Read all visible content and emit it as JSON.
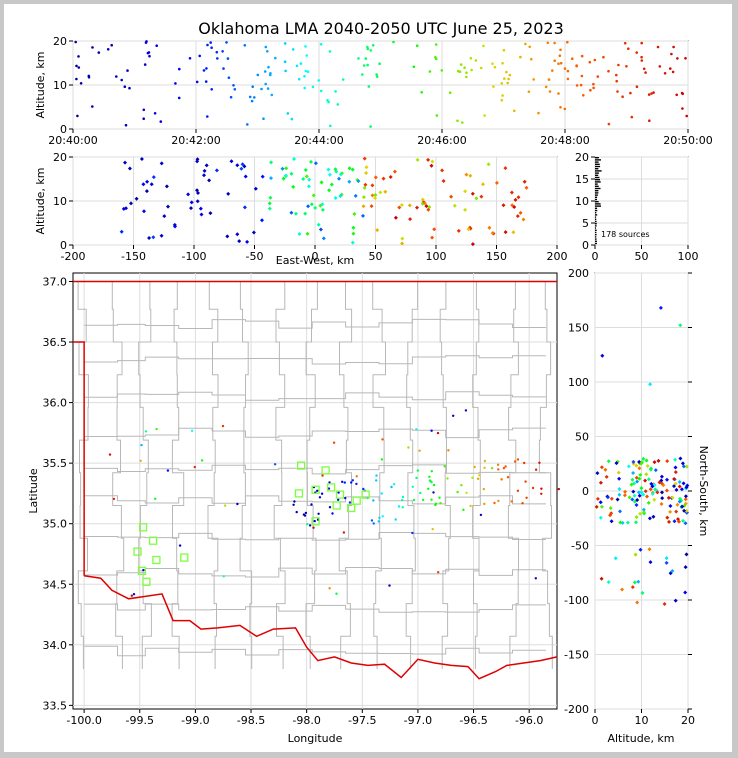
{
  "title": "Oklahoma LMA 2040-2050 UTC June 25, 2023",
  "chart_data": [
    {
      "id": "time-height",
      "type": "scatter",
      "xlabel": "",
      "ylabel": "Altitude, km",
      "xlim": [
        "20:40:00",
        "20:50:00"
      ],
      "ylim": [
        0,
        20
      ],
      "x_tick_labels": [
        "20:40:00",
        "20:42:00",
        "20:44:00",
        "20:46:00",
        "20:48:00",
        "20:50:00"
      ],
      "y_tick_labels": [
        "0",
        "10",
        "20"
      ],
      "color_encoding": "time (blue early to red late)",
      "points_min_alt": [
        [
          0.0,
          12
        ],
        [
          0.1,
          10
        ],
        [
          0.3,
          16
        ],
        [
          0.5,
          18
        ],
        [
          0.8,
          6
        ],
        [
          0.9,
          3
        ],
        [
          1.2,
          19
        ],
        [
          1.6,
          11
        ],
        [
          2.0,
          15
        ],
        [
          2.3,
          8
        ],
        [
          2.6,
          17
        ],
        [
          3.0,
          7
        ],
        [
          3.3,
          17
        ],
        [
          3.6,
          19
        ],
        [
          4.0,
          15
        ],
        [
          4.2,
          13
        ],
        [
          4.3,
          3
        ],
        [
          4.6,
          12
        ],
        [
          4.9,
          16
        ],
        [
          5.2,
          19
        ],
        [
          5.6,
          1
        ],
        [
          5.9,
          18
        ],
        [
          6.3,
          14
        ],
        [
          6.6,
          17
        ],
        [
          7.0,
          18
        ],
        [
          7.3,
          4
        ],
        [
          7.6,
          7
        ],
        [
          7.9,
          19
        ],
        [
          8.1,
          12
        ],
        [
          8.3,
          16
        ],
        [
          8.8,
          11
        ],
        [
          9.0,
          20
        ],
        [
          9.1,
          5
        ],
        [
          9.6,
          17
        ],
        [
          10.0,
          18
        ],
        [
          10.4,
          9
        ],
        [
          11.0,
          4
        ],
        [
          11.6,
          12
        ],
        [
          12.0,
          16
        ],
        [
          12.5,
          5
        ],
        [
          13.0,
          20
        ],
        [
          13.4,
          10
        ],
        [
          14.0,
          18
        ],
        [
          14.5,
          1
        ],
        [
          15.0,
          15
        ],
        [
          15.5,
          7
        ],
        [
          16.0,
          20
        ],
        [
          16.4,
          12
        ],
        [
          16.9,
          2
        ],
        [
          17.3,
          16
        ],
        [
          18.0,
          19
        ],
        [
          18.5,
          1
        ],
        [
          19.0,
          14
        ],
        [
          19.5,
          16
        ],
        [
          20.0,
          6
        ],
        [
          20.4,
          17
        ],
        [
          21.0,
          18
        ],
        [
          21.5,
          7
        ],
        [
          22.1,
          12
        ],
        [
          22.6,
          16
        ],
        [
          23.0,
          4
        ],
        [
          23.3,
          13
        ],
        [
          23.8,
          20
        ],
        [
          24.2,
          8
        ],
        [
          24.9,
          16
        ],
        [
          25.4,
          11
        ],
        [
          26.0,
          19
        ],
        [
          26.5,
          18
        ],
        [
          27.0,
          19
        ],
        [
          27.4,
          14
        ],
        [
          27.9,
          17
        ],
        [
          28.2,
          11
        ],
        [
          28.6,
          9
        ],
        [
          29.0,
          12
        ],
        [
          29.3,
          16
        ],
        [
          29.6,
          19
        ],
        [
          30.0,
          5
        ],
        [
          30.5,
          15
        ],
        [
          31.0,
          20
        ],
        [
          31.5,
          12
        ],
        [
          32.0,
          16
        ],
        [
          32.6,
          9
        ],
        [
          33.0,
          3
        ],
        [
          33.5,
          17
        ],
        [
          34.0,
          12
        ],
        [
          34.5,
          19
        ],
        [
          35.0,
          14
        ],
        [
          35.3,
          8
        ],
        [
          36.0,
          10
        ],
        [
          36.5,
          20
        ],
        [
          37.0,
          16
        ],
        [
          37.5,
          11
        ],
        [
          38.0,
          19
        ],
        [
          38.5,
          5
        ],
        [
          39.0,
          19
        ],
        [
          39.5,
          10
        ],
        [
          40.0,
          15
        ],
        [
          40.4,
          18
        ],
        [
          41.0,
          11
        ],
        [
          41.5,
          14
        ],
        [
          42.0,
          19
        ],
        [
          42.3,
          20
        ],
        [
          42.7,
          13
        ],
        [
          43.1,
          12
        ],
        [
          43.5,
          18
        ],
        [
          44.0,
          4
        ],
        [
          44.4,
          20
        ],
        [
          44.7,
          11
        ],
        [
          45.1,
          19
        ],
        [
          45.5,
          11
        ],
        [
          46.2,
          17
        ],
        [
          46.7,
          19
        ],
        [
          47.0,
          10
        ],
        [
          47.5,
          19
        ],
        [
          48.0,
          15
        ],
        [
          48.4,
          12
        ],
        [
          48.7,
          20
        ],
        [
          49.0,
          13
        ],
        [
          49.3,
          16
        ],
        [
          49.6,
          18
        ],
        [
          50.0,
          12
        ],
        [
          50.5,
          17
        ],
        [
          51.0,
          7
        ],
        [
          51.5,
          16
        ],
        [
          52.0,
          15
        ],
        [
          52.4,
          18
        ],
        [
          52.8,
          10
        ],
        [
          53.2,
          12
        ],
        [
          53.5,
          20
        ],
        [
          53.9,
          8
        ],
        [
          54.3,
          19
        ],
        [
          54.7,
          14
        ],
        [
          55.1,
          17
        ],
        [
          55.5,
          13
        ],
        [
          56.0,
          16
        ],
        [
          56.5,
          18
        ],
        [
          57.0,
          12
        ],
        [
          57.3,
          19
        ],
        [
          57.7,
          18
        ],
        [
          58.1,
          11
        ],
        [
          58.5,
          14
        ],
        [
          58.8,
          6
        ],
        [
          59.1,
          15
        ],
        [
          59.4,
          19
        ],
        [
          59.7,
          10
        ]
      ]
    },
    {
      "id": "ew-alt",
      "type": "scatter",
      "xlabel": "East-West, km",
      "ylabel": "Altitude, km",
      "xlim": [
        -200,
        200
      ],
      "ylim": [
        0,
        20
      ],
      "x_tick_labels": [
        "-200",
        "-150",
        "-100",
        "-50",
        "0",
        "50",
        "100",
        "150",
        "200"
      ],
      "y_tick_labels": [
        "0",
        "10",
        "20"
      ]
    },
    {
      "id": "histogram",
      "type": "bar",
      "xlim": [
        0,
        100
      ],
      "ylim": [
        0,
        20
      ],
      "x_tick_labels": [
        "0",
        "50",
        "100"
      ],
      "y_tick_labels": [
        "0",
        "5",
        "10",
        "15",
        "20"
      ],
      "annotation": "178 sources"
    },
    {
      "id": "plan-view",
      "type": "scatter",
      "xlabel": "Longitude",
      "ylabel": "Latitude",
      "xlim": [
        -100.1,
        -95.75
      ],
      "ylim": [
        33.47,
        37.07
      ],
      "x_tick_labels": [
        "-100.0",
        "-99.5",
        "-99.0",
        "-98.5",
        "-98.0",
        "-97.5",
        "-97.0",
        "-96.5",
        "-96.0"
      ],
      "y_tick_labels": [
        "33.5",
        "34.0",
        "34.5",
        "35.0",
        "35.5",
        "36.0",
        "36.5",
        "37.0"
      ],
      "stations": [
        [
          -99.47,
          34.97
        ],
        [
          -99.38,
          34.86
        ],
        [
          -99.52,
          34.77
        ],
        [
          -99.35,
          34.7
        ],
        [
          -99.48,
          34.61
        ],
        [
          -99.44,
          34.52
        ],
        [
          -99.1,
          34.72
        ],
        [
          -98.05,
          35.48
        ],
        [
          -97.92,
          35.28
        ],
        [
          -98.07,
          35.25
        ],
        [
          -97.83,
          35.44
        ],
        [
          -97.92,
          35.02
        ],
        [
          -97.78,
          35.3
        ],
        [
          -97.7,
          35.24
        ],
        [
          -97.73,
          35.15
        ],
        [
          -97.6,
          35.13
        ],
        [
          -97.55,
          35.19
        ],
        [
          -97.47,
          35.24
        ]
      ]
    },
    {
      "id": "alt-ns",
      "type": "scatter",
      "xlabel": "Altitude, km",
      "ylabel": "North-South, km",
      "xlim": [
        0,
        20
      ],
      "ylim": [
        -200,
        200
      ],
      "x_tick_labels": [
        "0",
        "10",
        "20"
      ],
      "y_tick_labels": [
        "-200",
        "-150",
        "-100",
        "-50",
        "0",
        "50",
        "100",
        "150",
        "200"
      ]
    }
  ]
}
